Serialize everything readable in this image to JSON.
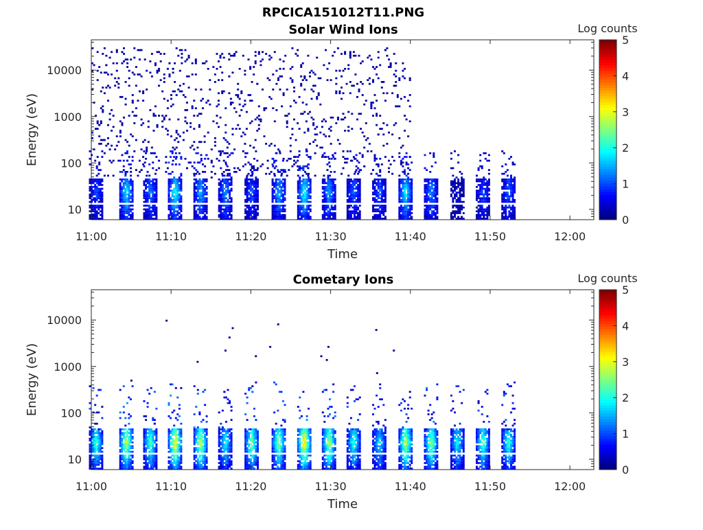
{
  "figure_title": "RPCICA151012T11.PNG",
  "chart_data": [
    {
      "type": "heatmap",
      "title": "Solar Wind Ions",
      "xlabel": "Time",
      "ylabel": "Energy (eV)",
      "yscale": "log",
      "x_ticks": [
        "11:00",
        "11:10",
        "11:20",
        "11:30",
        "11:40",
        "11:50",
        "12:00"
      ],
      "y_ticks": [
        "10",
        "100",
        "1000",
        "10000"
      ],
      "xlim_minutes": [
        0,
        63
      ],
      "ylim": [
        6,
        45000
      ],
      "colorbar": {
        "label": "Log counts",
        "range": [
          0,
          5
        ],
        "ticks": [
          "0",
          "1",
          "2",
          "3",
          "4",
          "5"
        ],
        "colormap": "jet"
      },
      "background_events": {
        "t_range": [
          0,
          40
        ],
        "e_range": [
          50,
          30000
        ],
        "log_counts": 0.1
      },
      "bursts": [
        {
          "t": 0.5,
          "log_counts": 1.0
        },
        {
          "t": 4.3,
          "log_counts": 1.9
        },
        {
          "t": 7.3,
          "log_counts": 1.3
        },
        {
          "t": 10.4,
          "log_counts": 2.1
        },
        {
          "t": 13.6,
          "log_counts": 1.6
        },
        {
          "t": 16.7,
          "log_counts": 1.4
        },
        {
          "t": 20.0,
          "log_counts": 1.1
        },
        {
          "t": 23.4,
          "log_counts": 1.6
        },
        {
          "t": 26.6,
          "log_counts": 2.0
        },
        {
          "t": 29.7,
          "log_counts": 1.5
        },
        {
          "t": 32.8,
          "log_counts": 1.2
        },
        {
          "t": 36.0,
          "log_counts": 1.1
        },
        {
          "t": 39.3,
          "log_counts": 1.9
        },
        {
          "t": 42.5,
          "log_counts": 1.4
        },
        {
          "t": 45.8,
          "log_counts": 0.4
        },
        {
          "t": 49.0,
          "log_counts": 1.0
        },
        {
          "t": 52.2,
          "log_counts": 1.2
        }
      ]
    },
    {
      "type": "heatmap",
      "title": "Cometary Ions",
      "xlabel": "Time",
      "ylabel": "Energy (eV)",
      "yscale": "log",
      "x_ticks": [
        "11:00",
        "11:10",
        "11:20",
        "11:30",
        "11:40",
        "11:50",
        "12:00"
      ],
      "y_ticks": [
        "10",
        "100",
        "1000",
        "10000"
      ],
      "xlim_minutes": [
        0,
        63
      ],
      "ylim": [
        6,
        45000
      ],
      "colorbar": {
        "label": "Log counts",
        "range": [
          0,
          5
        ],
        "ticks": [
          "0",
          "1",
          "2",
          "3",
          "4",
          "5"
        ],
        "colormap": "jet"
      },
      "sparse_points": [
        {
          "t": 9.3,
          "e": 10000
        },
        {
          "t": 17.6,
          "e": 6500
        },
        {
          "t": 23.3,
          "e": 8000
        },
        {
          "t": 35.6,
          "e": 6200
        },
        {
          "t": 17.2,
          "e": 4200
        },
        {
          "t": 16.7,
          "e": 2200
        },
        {
          "t": 22.3,
          "e": 2700
        },
        {
          "t": 29.6,
          "e": 2700
        },
        {
          "t": 20.5,
          "e": 1700
        },
        {
          "t": 28.7,
          "e": 1600
        },
        {
          "t": 29.4,
          "e": 1400
        },
        {
          "t": 37.8,
          "e": 2200
        },
        {
          "t": 13.2,
          "e": 1250
        },
        {
          "t": 4.9,
          "e": 500
        },
        {
          "t": 35.7,
          "e": 700
        }
      ],
      "bursts": [
        {
          "t": 0.5,
          "log_counts": 2.3
        },
        {
          "t": 4.3,
          "log_counts": 3.0
        },
        {
          "t": 7.3,
          "log_counts": 2.4
        },
        {
          "t": 10.4,
          "log_counts": 3.3
        },
        {
          "t": 13.6,
          "log_counts": 3.0
        },
        {
          "t": 16.7,
          "log_counts": 2.0
        },
        {
          "t": 20.0,
          "log_counts": 2.6
        },
        {
          "t": 23.4,
          "log_counts": 2.7
        },
        {
          "t": 26.6,
          "log_counts": 3.4
        },
        {
          "t": 29.7,
          "log_counts": 2.9
        },
        {
          "t": 32.8,
          "log_counts": 2.2
        },
        {
          "t": 36.0,
          "log_counts": 1.9
        },
        {
          "t": 39.3,
          "log_counts": 2.9
        },
        {
          "t": 42.5,
          "log_counts": 2.7
        },
        {
          "t": 45.8,
          "log_counts": 2.0
        },
        {
          "t": 49.0,
          "log_counts": 2.4
        },
        {
          "t": 52.2,
          "log_counts": 2.3
        }
      ]
    }
  ]
}
